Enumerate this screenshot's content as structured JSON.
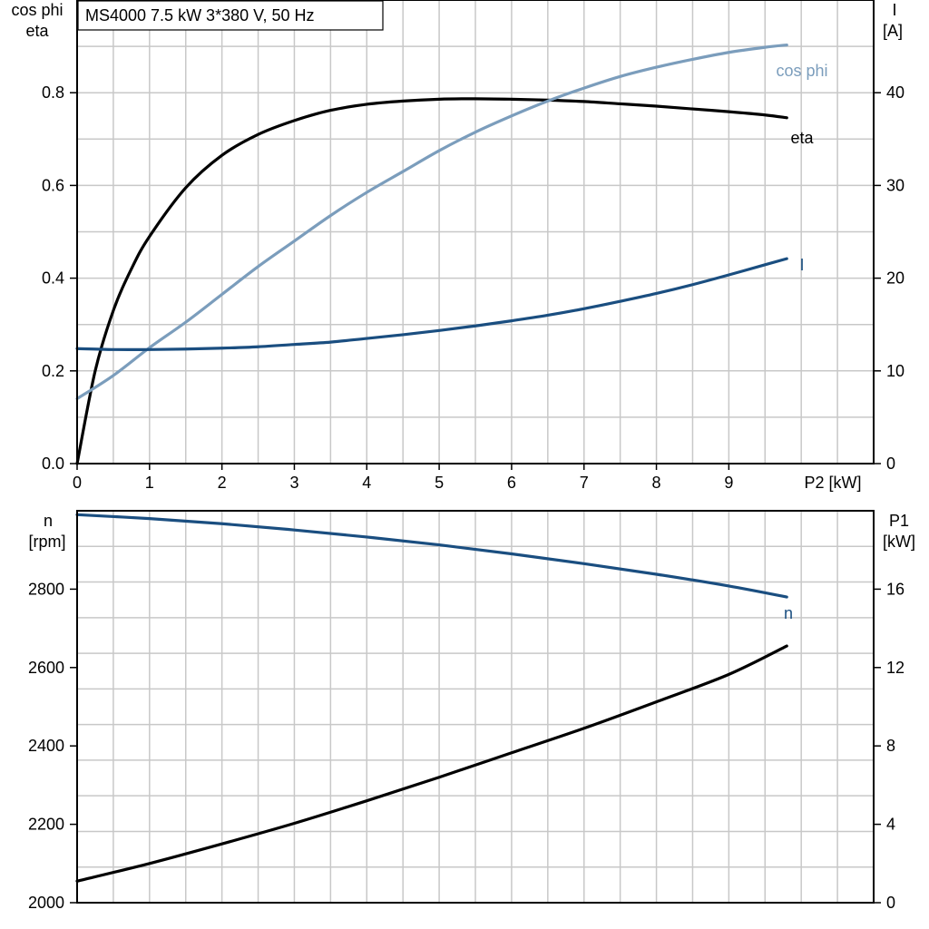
{
  "chart_data": [
    {
      "type": "line",
      "title": "MS4000   7.5 kW   3*380 V, 50 Hz",
      "xlabel": "P2 [kW]",
      "xlim": [
        0,
        11
      ],
      "xticks": [
        "0",
        "1",
        "2",
        "3",
        "4",
        "5",
        "6",
        "7",
        "8",
        "9"
      ],
      "ylabel_left": [
        "cos phi",
        "eta"
      ],
      "ylim_left": [
        0,
        1.0
      ],
      "yticks_left": [
        "0.0",
        "0.2",
        "0.4",
        "0.6",
        "0.8"
      ],
      "ylabel_right": [
        "I",
        "[A]"
      ],
      "ylim_right": [
        0,
        50
      ],
      "yticks_right": [
        "0",
        "10",
        "20",
        "30",
        "40"
      ],
      "grid": true,
      "series": [
        {
          "name": "eta",
          "axis": "left",
          "color": "#000000",
          "x": [
            0,
            0.25,
            0.5,
            0.75,
            1,
            1.5,
            2,
            2.5,
            3,
            3.5,
            4,
            4.5,
            5,
            5.5,
            6,
            6.5,
            7,
            7.5,
            8,
            8.5,
            9,
            9.5,
            9.8
          ],
          "y": [
            0,
            0.2,
            0.33,
            0.42,
            0.49,
            0.595,
            0.665,
            0.71,
            0.74,
            0.762,
            0.775,
            0.782,
            0.786,
            0.787,
            0.786,
            0.784,
            0.781,
            0.776,
            0.771,
            0.765,
            0.759,
            0.752,
            0.746
          ]
        },
        {
          "name": "cos phi",
          "axis": "left",
          "color": "#7b9dbc",
          "x": [
            0,
            0.5,
            1,
            1.5,
            2,
            2.5,
            3,
            3.5,
            4,
            4.5,
            5,
            5.5,
            6,
            6.5,
            7,
            7.5,
            8,
            8.5,
            9,
            9.5,
            9.8
          ],
          "y": [
            0.14,
            0.19,
            0.25,
            0.305,
            0.365,
            0.425,
            0.48,
            0.535,
            0.585,
            0.63,
            0.675,
            0.715,
            0.75,
            0.782,
            0.81,
            0.835,
            0.855,
            0.872,
            0.887,
            0.898,
            0.903
          ]
        },
        {
          "name": "I",
          "axis": "right",
          "color": "#1a4e80",
          "x": [
            0,
            0.5,
            1,
            1.5,
            2,
            2.5,
            3,
            3.5,
            4,
            4.5,
            5,
            5.5,
            6,
            6.5,
            7,
            7.5,
            8,
            8.5,
            9,
            9.5,
            9.8
          ],
          "y": [
            12.4,
            12.3,
            12.3,
            12.35,
            12.45,
            12.6,
            12.85,
            13.1,
            13.5,
            13.9,
            14.35,
            14.85,
            15.4,
            16.0,
            16.7,
            17.5,
            18.35,
            19.3,
            20.35,
            21.45,
            22.1
          ]
        }
      ]
    },
    {
      "type": "line",
      "xlim": [
        0,
        11
      ],
      "ylabel_left": [
        "n",
        "[rpm]"
      ],
      "ylim_left": [
        2000,
        3000
      ],
      "yticks_left": [
        "2000",
        "2200",
        "2400",
        "2600",
        "2800"
      ],
      "ylabel_right": [
        "P1",
        "[kW]"
      ],
      "ylim_right": [
        0,
        20
      ],
      "yticks_right": [
        "0",
        "4",
        "8",
        "12",
        "16"
      ],
      "grid": true,
      "series": [
        {
          "name": "n",
          "axis": "left",
          "color": "#1a4e80",
          "x": [
            0,
            1,
            2,
            3,
            4,
            5,
            6,
            7,
            8,
            9,
            9.8
          ],
          "y": [
            2990,
            2980,
            2967,
            2951,
            2933,
            2913,
            2890,
            2865,
            2838,
            2808,
            2780
          ]
        },
        {
          "axis": "right",
          "color": "#000000",
          "x": [
            0,
            1,
            2,
            3,
            4,
            5,
            6,
            7,
            8,
            9,
            9.8
          ],
          "y": [
            1.1,
            2.0,
            3.0,
            4.05,
            5.2,
            6.4,
            7.65,
            8.9,
            10.25,
            11.65,
            13.1
          ]
        }
      ]
    }
  ]
}
